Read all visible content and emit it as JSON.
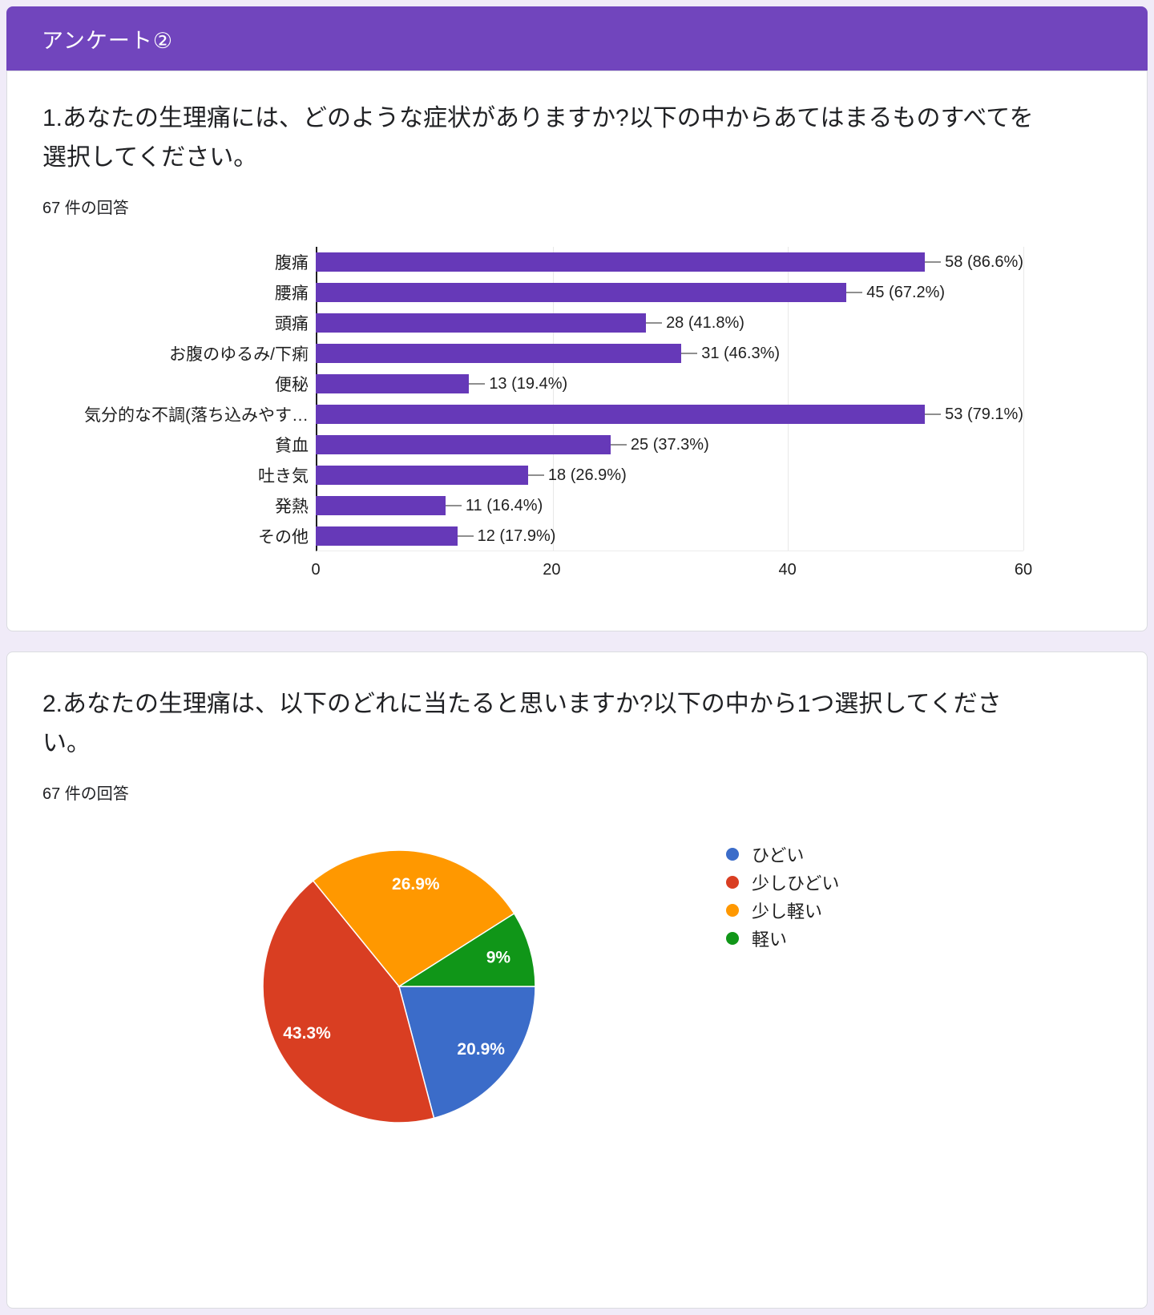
{
  "page": {
    "background": "#f0ebf8",
    "card_border": "#dadce0"
  },
  "header": {
    "title": "アンケート②",
    "background": "#7145bd",
    "text_color": "#ffffff"
  },
  "question1": {
    "title_lines": [
      "1.あなたの生理痛には、どのような症状がありますか?以下の中からあてはまるものすべてを",
      "選択してください。"
    ],
    "responses_label": "67 件の回答"
  },
  "question2": {
    "title_lines": [
      "2.あなたの生理痛は、以下のどれに当たると思いますか?以下の中から1つ選択してくださ",
      "い。"
    ],
    "responses_label": "67 件の回答"
  },
  "chart_data": [
    {
      "type": "bar",
      "orientation": "horizontal",
      "categories": [
        "腹痛",
        "腰痛",
        "頭痛",
        "お腹のゆるみ/下痢",
        "便秘",
        "気分的な不調(落ち込みやす…",
        "貧血",
        "吐き気",
        "発熱",
        "その他"
      ],
      "values": [
        58,
        45,
        28,
        31,
        13,
        53,
        25,
        18,
        11,
        12
      ],
      "value_labels": [
        "58 (86.6%)",
        "45 (67.2%)",
        "28 (41.8%)",
        "31 (46.3%)",
        "13 (19.4%)",
        "53 (79.1%)",
        "25 (37.3%)",
        "18 (26.9%)",
        "11 (16.4%)",
        "12 (17.9%)"
      ],
      "xlim": [
        0,
        60
      ],
      "xticks": [
        0,
        20,
        40,
        60
      ],
      "bar_color": "#6639b8",
      "grid": "vertical-light",
      "total_responses": 67
    },
    {
      "type": "pie",
      "labels": [
        "ひどい",
        "少しひどい",
        "少し軽い",
        "軽い"
      ],
      "values": [
        20.9,
        43.3,
        26.9,
        9
      ],
      "slice_labels": [
        "20.9%",
        "43.3%",
        "26.9%",
        "9%"
      ],
      "colors": [
        "#3b6cc9",
        "#d93e22",
        "#ff9800",
        "#109618"
      ],
      "start_angle_deg": 90,
      "direction": "clockwise",
      "legend_position": "right",
      "total_responses": 67
    }
  ]
}
